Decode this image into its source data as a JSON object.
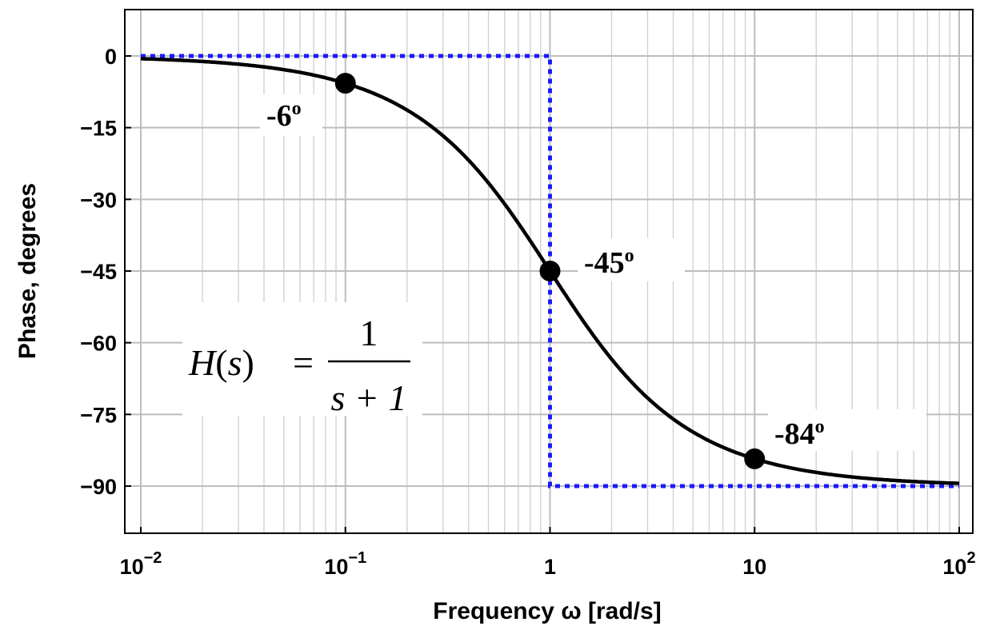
{
  "chart_data": {
    "type": "line",
    "title": "",
    "xlabel": "Frequency ω [rad/s]",
    "ylabel": "Phase, degrees",
    "xscale": "log",
    "xlim": [
      0.01,
      100
    ],
    "ylim": [
      -101,
      10
    ],
    "grid": true,
    "x_ticks": [
      {
        "value": 0.01,
        "base": "10",
        "exp": "−2"
      },
      {
        "value": 0.1,
        "base": "10",
        "exp": "−1"
      },
      {
        "value": 1,
        "base": "1",
        "exp": ""
      },
      {
        "value": 10,
        "base": "10",
        "exp": ""
      },
      {
        "value": 100,
        "base": "10",
        "exp": "2"
      }
    ],
    "y_ticks": [
      {
        "value": 0,
        "label": "0"
      },
      {
        "value": -15,
        "label": "−15"
      },
      {
        "value": -30,
        "label": "−30"
      },
      {
        "value": -45,
        "label": "−45"
      },
      {
        "value": -60,
        "label": "−60"
      },
      {
        "value": -75,
        "label": "−75"
      },
      {
        "value": -90,
        "label": "−90"
      }
    ],
    "series": [
      {
        "kind": "exact",
        "color": "#000000",
        "style": "solid",
        "function": "-atan(w) in degrees"
      },
      {
        "kind": "asymptote",
        "color": "#1a1aff",
        "style": "dotted",
        "x": [
          0.01,
          1,
          1,
          100
        ],
        "y": [
          0,
          0,
          -90,
          -90
        ]
      }
    ],
    "points": [
      {
        "x": 0.1,
        "y": -5.7
      },
      {
        "x": 1,
        "y": -45
      },
      {
        "x": 10,
        "y": -84.3
      }
    ],
    "annotations": [
      {
        "text": "-6",
        "sup": "o",
        "x": 0.1,
        "y": -5.7
      },
      {
        "text": "-45",
        "sup": "o",
        "x": 1,
        "y": -45
      },
      {
        "text": "-84",
        "sup": "o",
        "x": 10,
        "y": -84.3
      }
    ],
    "formula": {
      "lhs": "H",
      "arg": "s",
      "eq": "=",
      "numerator": "1",
      "denominator": "s + 1"
    }
  }
}
